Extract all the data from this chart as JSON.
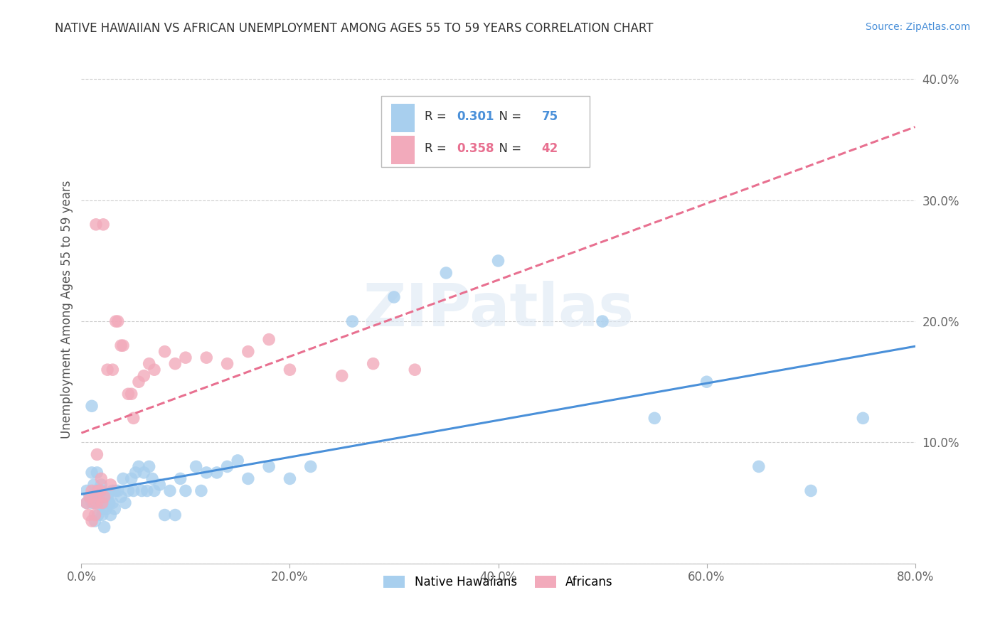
{
  "title": "NATIVE HAWAIIAN VS AFRICAN UNEMPLOYMENT AMONG AGES 55 TO 59 YEARS CORRELATION CHART",
  "source": "Source: ZipAtlas.com",
  "ylabel": "Unemployment Among Ages 55 to 59 years",
  "xlim": [
    0.0,
    0.8
  ],
  "ylim": [
    0.0,
    0.42
  ],
  "xticks": [
    0.0,
    0.2,
    0.4,
    0.6,
    0.8
  ],
  "xticklabels": [
    "0.0%",
    "20.0%",
    "40.0%",
    "60.0%",
    "80.0%"
  ],
  "yticks": [
    0.0,
    0.1,
    0.2,
    0.3,
    0.4
  ],
  "yticklabels": [
    "",
    "10.0%",
    "20.0%",
    "30.0%",
    "40.0%"
  ],
  "watermark_text": "ZIPatlas",
  "blue_color": "#A8CFEE",
  "pink_color": "#F2AABB",
  "blue_line_color": "#4A90D9",
  "pink_line_color": "#E87090",
  "legend_blue": "Native Hawaiians",
  "legend_pink": "Africans",
  "blue_R_label": "R = ",
  "blue_R_val": "0.301",
  "blue_N_label": "N = ",
  "blue_N_val": "75",
  "pink_R_label": "R = ",
  "pink_R_val": "0.358",
  "pink_N_label": "N = ",
  "pink_N_val": "42",
  "native_hawaiian_x": [
    0.005,
    0.005,
    0.008,
    0.01,
    0.01,
    0.01,
    0.012,
    0.012,
    0.013,
    0.013,
    0.014,
    0.015,
    0.015,
    0.016,
    0.016,
    0.016,
    0.018,
    0.019,
    0.02,
    0.02,
    0.02,
    0.021,
    0.022,
    0.022,
    0.023,
    0.024,
    0.025,
    0.026,
    0.027,
    0.028,
    0.03,
    0.03,
    0.032,
    0.033,
    0.035,
    0.038,
    0.04,
    0.042,
    0.045,
    0.048,
    0.05,
    0.052,
    0.055,
    0.058,
    0.06,
    0.063,
    0.065,
    0.068,
    0.07,
    0.075,
    0.08,
    0.085,
    0.09,
    0.095,
    0.1,
    0.11,
    0.115,
    0.12,
    0.13,
    0.14,
    0.15,
    0.16,
    0.18,
    0.2,
    0.22,
    0.26,
    0.3,
    0.35,
    0.4,
    0.5,
    0.55,
    0.6,
    0.65,
    0.7,
    0.75
  ],
  "native_hawaiian_y": [
    0.05,
    0.06,
    0.055,
    0.13,
    0.075,
    0.05,
    0.055,
    0.065,
    0.05,
    0.035,
    0.06,
    0.075,
    0.06,
    0.055,
    0.06,
    0.04,
    0.05,
    0.065,
    0.055,
    0.04,
    0.06,
    0.045,
    0.055,
    0.03,
    0.05,
    0.045,
    0.055,
    0.05,
    0.05,
    0.04,
    0.06,
    0.05,
    0.045,
    0.06,
    0.06,
    0.055,
    0.07,
    0.05,
    0.06,
    0.07,
    0.06,
    0.075,
    0.08,
    0.06,
    0.075,
    0.06,
    0.08,
    0.07,
    0.06,
    0.065,
    0.04,
    0.06,
    0.04,
    0.07,
    0.06,
    0.08,
    0.06,
    0.075,
    0.075,
    0.08,
    0.085,
    0.07,
    0.08,
    0.07,
    0.08,
    0.2,
    0.22,
    0.24,
    0.25,
    0.2,
    0.12,
    0.15,
    0.08,
    0.06,
    0.12
  ],
  "african_x": [
    0.005,
    0.007,
    0.008,
    0.01,
    0.01,
    0.012,
    0.013,
    0.014,
    0.015,
    0.015,
    0.016,
    0.017,
    0.018,
    0.019,
    0.02,
    0.021,
    0.022,
    0.025,
    0.028,
    0.03,
    0.033,
    0.035,
    0.038,
    0.04,
    0.045,
    0.048,
    0.05,
    0.055,
    0.06,
    0.065,
    0.07,
    0.08,
    0.09,
    0.1,
    0.12,
    0.14,
    0.16,
    0.18,
    0.2,
    0.25,
    0.28,
    0.32
  ],
  "african_y": [
    0.05,
    0.04,
    0.055,
    0.06,
    0.035,
    0.05,
    0.04,
    0.28,
    0.05,
    0.09,
    0.06,
    0.06,
    0.06,
    0.07,
    0.05,
    0.28,
    0.055,
    0.16,
    0.065,
    0.16,
    0.2,
    0.2,
    0.18,
    0.18,
    0.14,
    0.14,
    0.12,
    0.15,
    0.155,
    0.165,
    0.16,
    0.175,
    0.165,
    0.17,
    0.17,
    0.165,
    0.175,
    0.185,
    0.16,
    0.155,
    0.165,
    0.16
  ]
}
